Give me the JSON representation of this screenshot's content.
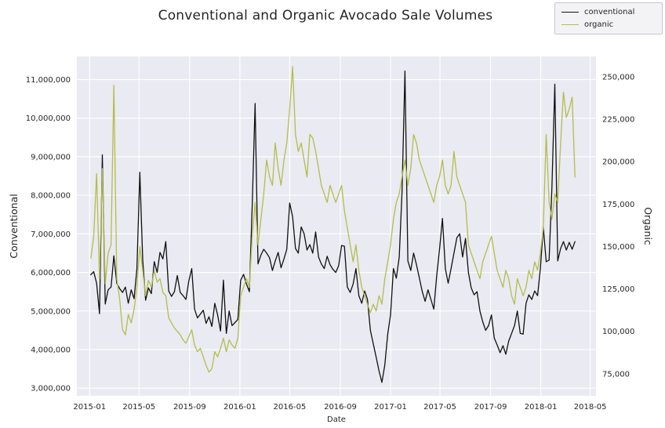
{
  "chart_data": {
    "type": "line",
    "title": "Conventional and Organic Avocado Sale Volumes",
    "plot_background": "#eaeaf2",
    "grid_color": "#ffffff",
    "grid": true,
    "legend": {
      "position": "upper-right-figure",
      "items": [
        "conventional",
        "organic"
      ]
    },
    "x_axis": {
      "label": "Date",
      "range": [
        "2014-12-01",
        "2018-05-15"
      ],
      "tick_values": [
        "2015-01-01",
        "2015-05-01",
        "2015-09-01",
        "2016-01-01",
        "2016-05-01",
        "2016-09-01",
        "2017-01-01",
        "2017-05-01",
        "2017-09-01",
        "2018-01-01",
        "2018-05-01"
      ],
      "tick_labels": [
        "2015-01",
        "2015-05",
        "2015-09",
        "2016-01",
        "2016-05",
        "2016-09",
        "2017-01",
        "2017-05",
        "2017-09",
        "2018-01",
        "2018-05"
      ]
    },
    "left_axis": {
      "label": "Conventional",
      "range": [
        2800000,
        11600000
      ],
      "tick_values": [
        3000000,
        4000000,
        5000000,
        6000000,
        7000000,
        8000000,
        9000000,
        10000000,
        11000000
      ],
      "tick_labels": [
        "3,000,000",
        "4,000,000",
        "5,000,000",
        "6,000,000",
        "7,000,000",
        "8,000,000",
        "9,000,000",
        "10,000,000",
        "11,000,000"
      ]
    },
    "right_axis": {
      "label": "Organic",
      "range": [
        62000,
        262000
      ],
      "tick_values": [
        75000,
        100000,
        125000,
        150000,
        175000,
        200000,
        225000,
        250000
      ],
      "tick_labels": [
        "75,000",
        "100,000",
        "125,000",
        "150,000",
        "175,000",
        "200,000",
        "225,000",
        "250,000"
      ]
    },
    "x": [
      "2015-01-04",
      "2015-01-11",
      "2015-01-18",
      "2015-01-25",
      "2015-02-01",
      "2015-02-08",
      "2015-02-15",
      "2015-02-22",
      "2015-03-01",
      "2015-03-08",
      "2015-03-15",
      "2015-03-22",
      "2015-03-29",
      "2015-04-05",
      "2015-04-12",
      "2015-04-19",
      "2015-04-26",
      "2015-05-03",
      "2015-05-10",
      "2015-05-17",
      "2015-05-24",
      "2015-05-31",
      "2015-06-07",
      "2015-06-14",
      "2015-06-21",
      "2015-06-28",
      "2015-07-05",
      "2015-07-12",
      "2015-07-19",
      "2015-07-26",
      "2015-08-02",
      "2015-08-09",
      "2015-08-16",
      "2015-08-23",
      "2015-08-30",
      "2015-09-06",
      "2015-09-13",
      "2015-09-20",
      "2015-09-27",
      "2015-10-04",
      "2015-10-11",
      "2015-10-18",
      "2015-10-25",
      "2015-11-01",
      "2015-11-08",
      "2015-11-15",
      "2015-11-22",
      "2015-11-29",
      "2015-12-06",
      "2015-12-13",
      "2015-12-20",
      "2015-12-27",
      "2016-01-03",
      "2016-01-10",
      "2016-01-17",
      "2016-01-24",
      "2016-01-31",
      "2016-02-07",
      "2016-02-14",
      "2016-02-21",
      "2016-02-28",
      "2016-03-06",
      "2016-03-13",
      "2016-03-20",
      "2016-03-27",
      "2016-04-03",
      "2016-04-10",
      "2016-04-17",
      "2016-04-24",
      "2016-05-01",
      "2016-05-08",
      "2016-05-15",
      "2016-05-22",
      "2016-05-29",
      "2016-06-05",
      "2016-06-12",
      "2016-06-19",
      "2016-06-26",
      "2016-07-03",
      "2016-07-10",
      "2016-07-17",
      "2016-07-24",
      "2016-07-31",
      "2016-08-07",
      "2016-08-14",
      "2016-08-21",
      "2016-08-28",
      "2016-09-04",
      "2016-09-11",
      "2016-09-18",
      "2016-09-25",
      "2016-10-02",
      "2016-10-09",
      "2016-10-16",
      "2016-10-23",
      "2016-10-30",
      "2016-11-06",
      "2016-11-13",
      "2016-11-20",
      "2016-11-27",
      "2016-12-04",
      "2016-12-11",
      "2016-12-18",
      "2016-12-25",
      "2017-01-01",
      "2017-01-08",
      "2017-01-15",
      "2017-01-22",
      "2017-01-29",
      "2017-02-05",
      "2017-02-12",
      "2017-02-19",
      "2017-02-26",
      "2017-03-05",
      "2017-03-12",
      "2017-03-19",
      "2017-03-26",
      "2017-04-02",
      "2017-04-09",
      "2017-04-16",
      "2017-04-23",
      "2017-04-30",
      "2017-05-07",
      "2017-05-14",
      "2017-05-21",
      "2017-05-28",
      "2017-06-04",
      "2017-06-11",
      "2017-06-18",
      "2017-06-25",
      "2017-07-02",
      "2017-07-09",
      "2017-07-16",
      "2017-07-23",
      "2017-07-30",
      "2017-08-06",
      "2017-08-13",
      "2017-08-20",
      "2017-08-27",
      "2017-09-03",
      "2017-09-10",
      "2017-09-17",
      "2017-09-24",
      "2017-10-01",
      "2017-10-08",
      "2017-10-15",
      "2017-10-22",
      "2017-10-29",
      "2017-11-05",
      "2017-11-12",
      "2017-11-19",
      "2017-11-26",
      "2017-12-03",
      "2017-12-10",
      "2017-12-17",
      "2017-12-24",
      "2017-12-31",
      "2018-01-07",
      "2018-01-14",
      "2018-01-21",
      "2018-01-28",
      "2018-02-04",
      "2018-02-11",
      "2018-02-18",
      "2018-02-25",
      "2018-03-04",
      "2018-03-11",
      "2018-03-18",
      "2018-03-25"
    ],
    "series": [
      {
        "name": "conventional",
        "color": "#111111",
        "axis": "left",
        "values": [
          5940000,
          6020000,
          5720000,
          4930000,
          9050000,
          5180000,
          5550000,
          5620000,
          6430000,
          5720000,
          5580000,
          5480000,
          5620000,
          5200000,
          5550000,
          5320000,
          6100000,
          8600000,
          6320000,
          5280000,
          5600000,
          5450000,
          6280000,
          6000000,
          6520000,
          6350000,
          6800000,
          5520000,
          5380000,
          5500000,
          5920000,
          5480000,
          5400000,
          5300000,
          5780000,
          6100000,
          5050000,
          4820000,
          4920000,
          5020000,
          4680000,
          4850000,
          4600000,
          5200000,
          4900000,
          4480000,
          5800000,
          4420000,
          5000000,
          4620000,
          4700000,
          4780000,
          5800000,
          5950000,
          5700000,
          5500000,
          7720000,
          10380000,
          6220000,
          6450000,
          6600000,
          6500000,
          6380000,
          6050000,
          6300000,
          6520000,
          6120000,
          6350000,
          6600000,
          7800000,
          7450000,
          6620000,
          6500000,
          7180000,
          7000000,
          6580000,
          6720000,
          6500000,
          7050000,
          6400000,
          6220000,
          6100000,
          6420000,
          6200000,
          6080000,
          6000000,
          6180000,
          6700000,
          6680000,
          5620000,
          5480000,
          5700000,
          6100000,
          5400000,
          5200000,
          5520000,
          5300000,
          4500000,
          4150000,
          3800000,
          3450000,
          3150000,
          3600000,
          4400000,
          4900000,
          6100000,
          5850000,
          6400000,
          8100000,
          11220000,
          6300000,
          6050000,
          6500000,
          6200000,
          5850000,
          5500000,
          5250000,
          5550000,
          5300000,
          5050000,
          5900000,
          6600000,
          7400000,
          6100000,
          5720000,
          6100000,
          6500000,
          6900000,
          7000000,
          6400000,
          6880000,
          6000000,
          5600000,
          5420000,
          5500000,
          5000000,
          4720000,
          4500000,
          4620000,
          4900000,
          4300000,
          4120000,
          3920000,
          4100000,
          3880000,
          4220000,
          4420000,
          4620000,
          5000000,
          4420000,
          4400000,
          5200000,
          5420000,
          5300000,
          5520000,
          5400000,
          6100000,
          7180000,
          6280000,
          6320000,
          8200000,
          10880000,
          6300000,
          6620000,
          6800000,
          6580000,
          6780000,
          6600000,
          6800000
        ]
      },
      {
        "name": "organic",
        "color": "#b3bd4c",
        "axis": "right",
        "values": [
          143000,
          156000,
          193000,
          131000,
          196000,
          128000,
          146000,
          151000,
          245000,
          131000,
          119000,
          101000,
          98000,
          110000,
          105000,
          113000,
          126000,
          150000,
          136000,
          121000,
          130000,
          126000,
          136000,
          129000,
          131000,
          123000,
          121000,
          108000,
          105000,
          102000,
          100000,
          98000,
          95000,
          93000,
          97000,
          101000,
          92000,
          88000,
          90000,
          85000,
          80000,
          76000,
          78000,
          88000,
          85000,
          90000,
          96000,
          88000,
          95000,
          92000,
          90000,
          96000,
          121000,
          126000,
          131000,
          126000,
          156000,
          176000,
          151000,
          166000,
          181000,
          201000,
          191000,
          186000,
          211000,
          196000,
          186000,
          201000,
          211000,
          231000,
          256000,
          216000,
          206000,
          211000,
          201000,
          191000,
          216000,
          214000,
          206000,
          196000,
          186000,
          181000,
          176000,
          186000,
          181000,
          176000,
          181000,
          186000,
          171000,
          161000,
          151000,
          141000,
          151000,
          136000,
          126000,
          121000,
          116000,
          111000,
          116000,
          112000,
          121000,
          116000,
          131000,
          141000,
          151000,
          166000,
          176000,
          181000,
          191000,
          201000,
          186000,
          196000,
          216000,
          211000,
          201000,
          196000,
          191000,
          186000,
          181000,
          176000,
          186000,
          191000,
          201000,
          186000,
          181000,
          186000,
          206000,
          191000,
          186000,
          181000,
          176000,
          151000,
          146000,
          141000,
          136000,
          131000,
          141000,
          146000,
          151000,
          156000,
          146000,
          136000,
          131000,
          126000,
          136000,
          131000,
          121000,
          116000,
          131000,
          126000,
          121000,
          126000,
          136000,
          131000,
          141000,
          136000,
          146000,
          161000,
          216000,
          176000,
          166000,
          181000,
          176000,
          211000,
          241000,
          226000,
          231000,
          238000,
          191000
        ]
      }
    ]
  }
}
